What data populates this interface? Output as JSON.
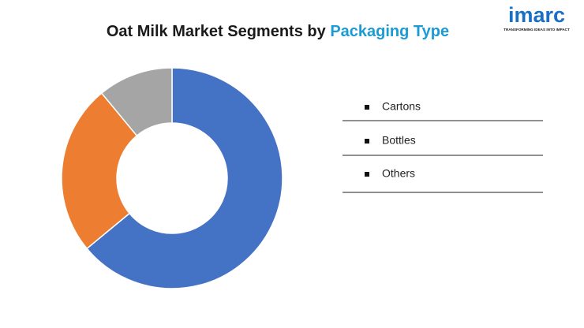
{
  "chart_data": {
    "type": "donut",
    "title": "Oat Milk Market Segments by",
    "title_highlight": "Packaging Type",
    "title_highlight_color": "#1b9ad6",
    "logo": "imarc",
    "logo_tagline": "TRANSFORMING IDEAS INTO IMPACT",
    "logo_color": "#1a6fc4",
    "categories": [
      "Cartons",
      "Bottles",
      "Others"
    ],
    "values": [
      64,
      25,
      11
    ],
    "colors": [
      "#4472c4",
      "#ed7d31",
      "#a5a5a5"
    ],
    "legend": "right"
  }
}
